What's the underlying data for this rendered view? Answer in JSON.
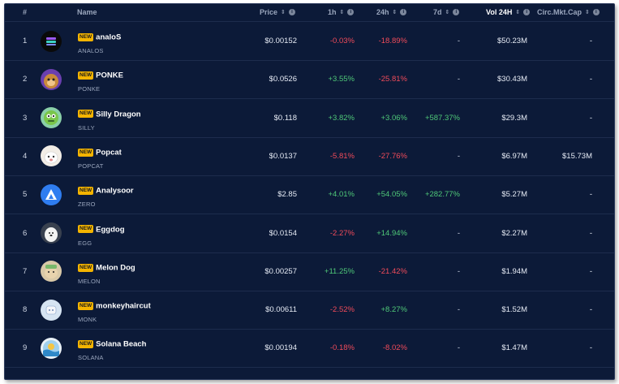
{
  "header": {
    "rank": "#",
    "name": "Name",
    "price": "Price",
    "h1": "1h",
    "h24": "24h",
    "d7": "7d",
    "vol": "Vol 24H",
    "mcap": "Circ.Mkt.Cap",
    "sort_icon": "⇕",
    "info_icon": "i"
  },
  "colors": {
    "background": "#0c1a38",
    "positive": "#4fc878",
    "negative": "#f04b5a",
    "badge": "#f4b400"
  },
  "rows": [
    {
      "rank": "1",
      "badge": "NEW",
      "name": "analoS",
      "symbol": "ANALOS",
      "price": "$0.00152",
      "h1": "-0.03%",
      "h1_sign": "neg",
      "h24": "-18.89%",
      "h24_sign": "neg",
      "d7": "-",
      "d7_sign": "dash",
      "vol": "$50.23M",
      "mcap": "-",
      "logo": "analos-logo"
    },
    {
      "rank": "2",
      "badge": "NEW",
      "name": "PONKE",
      "symbol": "PONKE",
      "price": "$0.0526",
      "h1": "+3.55%",
      "h1_sign": "pos",
      "h24": "-25.81%",
      "h24_sign": "neg",
      "d7": "-",
      "d7_sign": "dash",
      "vol": "$30.43M",
      "mcap": "-",
      "logo": "ponke-logo"
    },
    {
      "rank": "3",
      "badge": "NEW",
      "name": "Silly Dragon",
      "symbol": "SILLY",
      "price": "$0.118",
      "h1": "+3.82%",
      "h1_sign": "pos",
      "h24": "+3.06%",
      "h24_sign": "pos",
      "d7": "+587.37%",
      "d7_sign": "pos",
      "vol": "$29.3M",
      "mcap": "-",
      "logo": "silly-dragon-logo"
    },
    {
      "rank": "4",
      "badge": "NEW",
      "name": "Popcat",
      "symbol": "POPCAT",
      "price": "$0.0137",
      "h1": "-5.81%",
      "h1_sign": "neg",
      "h24": "-27.76%",
      "h24_sign": "neg",
      "d7": "-",
      "d7_sign": "dash",
      "vol": "$6.97M",
      "mcap": "$15.73M",
      "logo": "popcat-logo"
    },
    {
      "rank": "5",
      "badge": "NEW",
      "name": "Analysoor",
      "symbol": "ZERO",
      "price": "$2.85",
      "h1": "+4.01%",
      "h1_sign": "pos",
      "h24": "+54.05%",
      "h24_sign": "pos",
      "d7": "+282.77%",
      "d7_sign": "pos",
      "vol": "$5.27M",
      "mcap": "-",
      "logo": "analysoor-logo"
    },
    {
      "rank": "6",
      "badge": "NEW",
      "name": "Eggdog",
      "symbol": "EGG",
      "price": "$0.0154",
      "h1": "-2.27%",
      "h1_sign": "neg",
      "h24": "+14.94%",
      "h24_sign": "pos",
      "d7": "-",
      "d7_sign": "dash",
      "vol": "$2.27M",
      "mcap": "-",
      "logo": "eggdog-logo"
    },
    {
      "rank": "7",
      "badge": "NEW",
      "name": "Melon Dog",
      "symbol": "MELON",
      "price": "$0.00257",
      "h1": "+11.25%",
      "h1_sign": "pos",
      "h24": "-21.42%",
      "h24_sign": "neg",
      "d7": "-",
      "d7_sign": "dash",
      "vol": "$1.94M",
      "mcap": "-",
      "logo": "melon-dog-logo"
    },
    {
      "rank": "8",
      "badge": "NEW",
      "name": "monkeyhaircut",
      "symbol": "MONK",
      "price": "$0.00611",
      "h1": "-2.52%",
      "h1_sign": "neg",
      "h24": "+8.27%",
      "h24_sign": "pos",
      "d7": "-",
      "d7_sign": "dash",
      "vol": "$1.52M",
      "mcap": "-",
      "logo": "monkeyhaircut-logo"
    },
    {
      "rank": "9",
      "badge": "NEW",
      "name": "Solana Beach",
      "symbol": "SOLANA",
      "price": "$0.00194",
      "h1": "-0.18%",
      "h1_sign": "neg",
      "h24": "-8.02%",
      "h24_sign": "neg",
      "d7": "-",
      "d7_sign": "dash",
      "vol": "$1.47M",
      "mcap": "-",
      "logo": "solana-beach-logo"
    }
  ]
}
